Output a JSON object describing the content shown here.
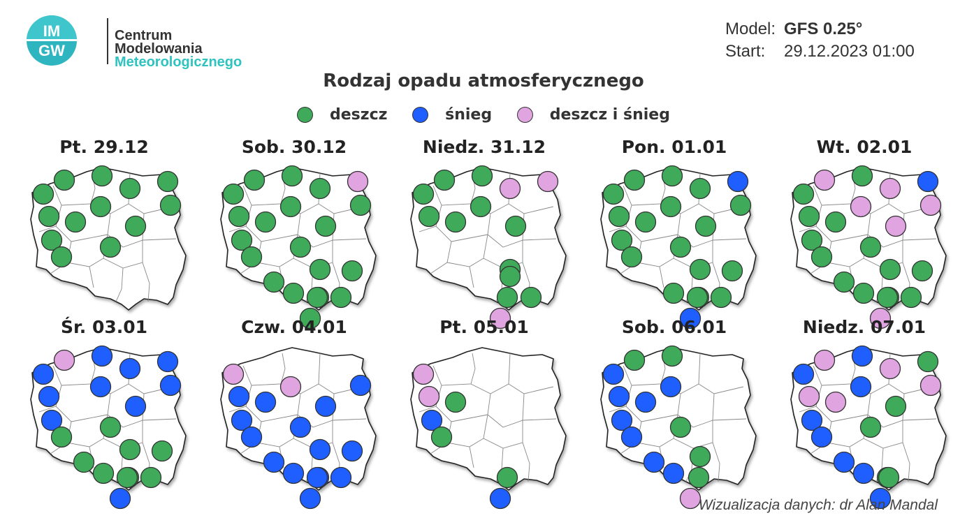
{
  "header": {
    "logo_text": [
      "Centrum",
      "Modelowania",
      "Meteorologicznego"
    ],
    "logo_badge": [
      "IM",
      "GW"
    ],
    "model_label": "Model:",
    "model_value": "GFS 0.25°",
    "start_label": "Start:",
    "start_value": "29.12.2023 01:00"
  },
  "title": "Rodzaj opadu atmosferycznego",
  "legend": [
    {
      "key": "rain",
      "label": "deszcz",
      "color": "#3faa5a"
    },
    {
      "key": "snow",
      "label": "śnieg",
      "color": "#1f5fff"
    },
    {
      "key": "mix",
      "label": "deszcz i śnieg",
      "color": "#e0a4e0"
    }
  ],
  "colors": {
    "rain": "#3faa5a",
    "snow": "#1f5fff",
    "mix": "#e0a4e0",
    "map_fill": "#ffffff",
    "map_stroke": "#222222",
    "voiv_stroke": "#888888"
  },
  "days": [
    {
      "label": "Pt. 29.12",
      "stations": {
        "koszalin": "rain",
        "ustka": "rain",
        "gdansk": "rain",
        "olsztyn": "rain",
        "suwalki": "rain",
        "szczecin": "rain",
        "bialystok": "rain",
        "gorzow": "rain",
        "bydgoszcz": "rain",
        "poznan": "rain",
        "warszawa": "rain",
        "zielona": "rain",
        "lodz": "rain"
      }
    },
    {
      "label": "Sob. 30.12",
      "stations": {
        "koszalin": "rain",
        "ustka": "rain",
        "gdansk": "rain",
        "olsztyn": "rain",
        "suwalki": "mix",
        "szczecin": "rain",
        "bialystok": "rain",
        "gorzow": "rain",
        "bydgoszcz": "rain",
        "poznan": "rain",
        "warszawa": "rain",
        "zielona": "rain",
        "lodz": "rain",
        "lublin": "rain",
        "kielce": "rain",
        "legnica": "rain",
        "wroclaw": "rain",
        "opole": "rain",
        "krakow": "rain",
        "rzeszow": "rain",
        "zakopane": "rain"
      }
    },
    {
      "label": "Niedz. 31.12",
      "stations": {
        "koszalin": "rain",
        "ustka": "rain",
        "gdansk": "rain",
        "olsztyn": "mix",
        "suwalki": "mix",
        "szczecin": "rain",
        "bydgoszcz": "rain",
        "poznan": "rain",
        "warszawa": "rain",
        "kielce": "rain",
        "katowice": "rain",
        "krakow": "rain",
        "rzeszow": "rain",
        "zakopane": "mix"
      }
    },
    {
      "label": "Pon. 01.01",
      "stations": {
        "koszalin": "rain",
        "ustka": "rain",
        "gdansk": "rain",
        "olsztyn": "rain",
        "suwalki": "snow",
        "szczecin": "rain",
        "bialystok": "rain",
        "gorzow": "rain",
        "bydgoszcz": "rain",
        "poznan": "rain",
        "warszawa": "rain",
        "zielona": "rain",
        "lodz": "rain",
        "lublin": "rain",
        "kielce": "rain",
        "wroclaw": "rain",
        "opole": "rain",
        "krakow": "rain",
        "rzeszow": "rain",
        "zakopane": "snow"
      }
    },
    {
      "label": "Wt. 02.01",
      "stations": {
        "koszalin": "rain",
        "ustka": "mix",
        "gdansk": "rain",
        "olsztyn": "mix",
        "suwalki": "snow",
        "szczecin": "rain",
        "bialystok": "mix",
        "gorzow": "rain",
        "bydgoszcz": "mix",
        "poznan": "rain",
        "warszawa": "mix",
        "zielona": "rain",
        "lodz": "rain",
        "lublin": "rain",
        "kielce": "rain",
        "legnica": "rain",
        "wroclaw": "rain",
        "opole": "rain",
        "krakow": "rain",
        "rzeszow": "rain",
        "zakopane": "mix"
      }
    },
    {
      "label": "Śr. 03.01",
      "stations": {
        "koszalin": "snow",
        "ustka": "mix",
        "gdansk": "snow",
        "olsztyn": "snow",
        "suwalki": "snow",
        "szczecin": "snow",
        "bialystok": "snow",
        "gorzow": "snow",
        "bydgoszcz": "snow",
        "warszawa": "snow",
        "zielona": "rain",
        "lodz": "rain",
        "lublin": "rain",
        "kielce": "rain",
        "legnica": "rain",
        "wroclaw": "rain",
        "opole": "rain",
        "krakow": "rain",
        "rzeszow": "rain",
        "zakopane": "snow"
      }
    },
    {
      "label": "Czw. 04.01",
      "stations": {
        "koszalin": "mix",
        "szczecin": "snow",
        "bialystok": "snow",
        "gorzow": "snow",
        "bydgoszcz": "mix",
        "poznan": "snow",
        "warszawa": "snow",
        "zielona": "snow",
        "lodz": "snow",
        "lublin": "snow",
        "kielce": "snow",
        "legnica": "snow",
        "wroclaw": "snow",
        "opole": "snow",
        "krakow": "snow",
        "rzeszow": "snow",
        "zakopane": "snow"
      }
    },
    {
      "label": "Pt. 05.01",
      "stations": {
        "koszalin": "mix",
        "szczecin": "mix",
        "poznan": "rain",
        "gorzow": "snow",
        "zielona": "rain",
        "krakow": "rain",
        "zakopane": "snow"
      }
    },
    {
      "label": "Sob. 06.01",
      "stations": {
        "koszalin": "snow",
        "ustka": "rain",
        "gdansk": "rain",
        "szczecin": "snow",
        "gorzow": "snow",
        "bydgoszcz": "snow",
        "poznan": "snow",
        "zielona": "snow",
        "lodz": "rain",
        "legnica": "snow",
        "wroclaw": "snow",
        "opole": "rain",
        "katowice": "rain",
        "zakopane": "mix"
      }
    },
    {
      "label": "Niedz. 07.01",
      "stations": {
        "koszalin": "snow",
        "ustka": "mix",
        "gdansk": "snow",
        "olsztyn": "mix",
        "suwalki": "rain",
        "szczecin": "mix",
        "bialystok": "mix",
        "gorzow": "snow",
        "bydgoszcz": "snow",
        "poznan": "mix",
        "warszawa": "rain",
        "lodz": "rain",
        "zielona": "snow",
        "legnica": "snow",
        "wroclaw": "snow",
        "krakow": "rain",
        "opole": "rain",
        "zakopane": "snow"
      }
    }
  ],
  "credit": "Wizualizacja danych: dr Alan Mandal"
}
